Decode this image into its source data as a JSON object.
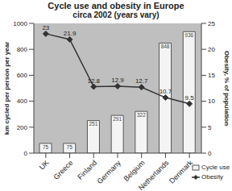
{
  "chart_data": {
    "type": "bar",
    "title": "Cycle use and obesity in Europe",
    "subtitle": "circa 2002 (years vary)",
    "categories": [
      "UK",
      "Greece",
      "Finland",
      "Germany",
      "Belgium",
      "Netherlands",
      "Denmark"
    ],
    "series": [
      {
        "name": "Cycle use",
        "type": "bar",
        "color": "#f4f4f4",
        "values": [
          75,
          75,
          251,
          291,
          322,
          848,
          936
        ]
      },
      {
        "name": "Obesity",
        "type": "line",
        "color": "#333333",
        "marker": "diamond",
        "axis": "y2",
        "values": [
          23,
          21.9,
          12.8,
          12.9,
          12.7,
          10.7,
          9.5
        ]
      }
    ],
    "y_label": "km cycled per person per year",
    "y2_label": "Obesity, % of population",
    "ylim": [
      0,
      1000
    ],
    "yticks": [
      0,
      200,
      400,
      600,
      800,
      1000
    ],
    "y2lim": [
      0,
      25
    ],
    "y2ticks": [
      0,
      5,
      10,
      15,
      20,
      25
    ],
    "data_labels": true,
    "legend": "bottom right",
    "grid": false
  }
}
